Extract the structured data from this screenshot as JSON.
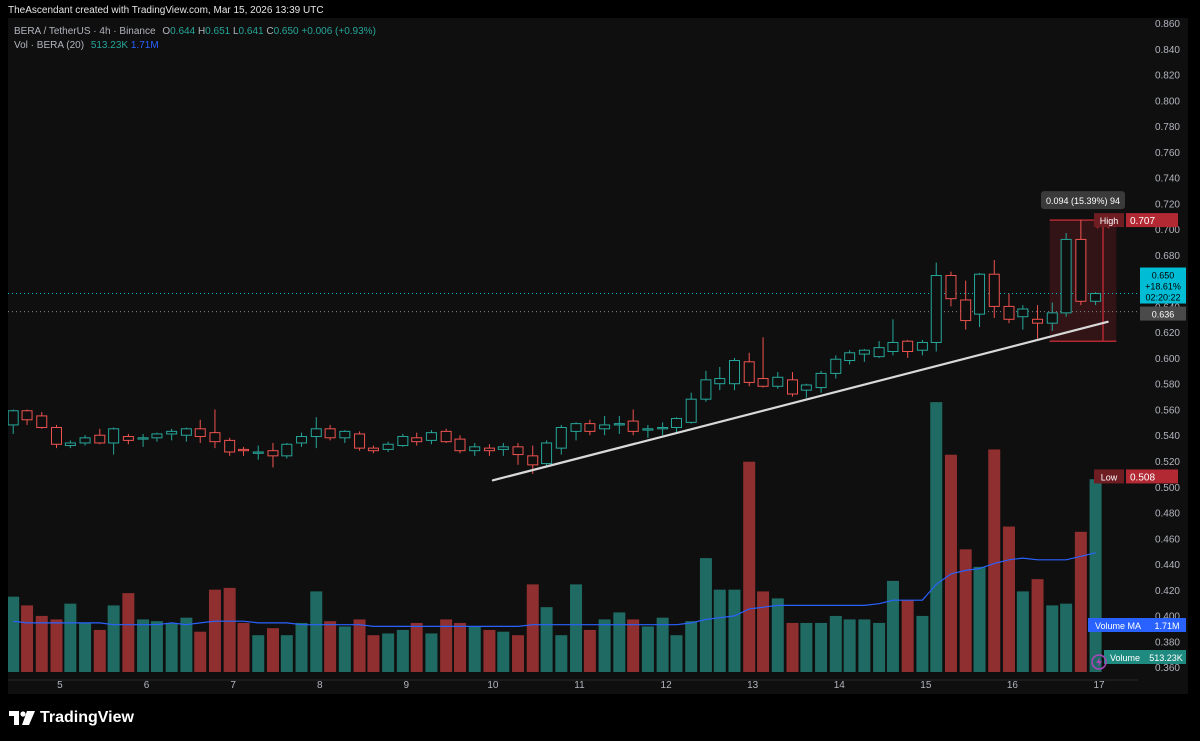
{
  "header": {
    "credit": "TheAscendant created with TradingView.com, Mar 15, 2026 13:39 UTC",
    "symbol": "BERA / TetherUS · 4h · Binance",
    "open_label": "O",
    "open": "0.644",
    "high_label": "H",
    "high": "0.651",
    "low_label": "L",
    "low": "0.641",
    "close_label": "C",
    "close": "0.650",
    "change": "+0.006 (+0.93%)",
    "volume_label": "Vol · BERA (20)",
    "volume_value": "513.23K",
    "volume_ma_value": "1.71M"
  },
  "footer": {
    "brand": "TradingView",
    "logo_icon": "tradingview-logo-icon"
  },
  "colors": {
    "up": "#26a69a",
    "down": "#ef5350",
    "range_red": "#b22833",
    "trendline": "#d9d9d9",
    "ma_line": "#2962ff",
    "price_box": "#00bcd4"
  },
  "chart_data": {
    "type": "candlestick",
    "price_axis": {
      "ylim": [
        0.35,
        0.86
      ],
      "ticks": [
        "0.860",
        "0.840",
        "0.820",
        "0.800",
        "0.780",
        "0.760",
        "0.740",
        "0.720",
        "0.700",
        "0.680",
        "0.660",
        "0.640",
        "0.620",
        "0.600",
        "0.580",
        "0.560",
        "0.540",
        "0.520",
        "0.500",
        "0.480",
        "0.460",
        "0.440",
        "0.420",
        "0.400",
        "0.380",
        "0.360"
      ]
    },
    "time_axis": {
      "labels": [
        "5",
        "6",
        "7",
        "8",
        "9",
        "10",
        "11",
        "12",
        "13",
        "14",
        "15",
        "16",
        "17"
      ],
      "days_range": [
        4.4,
        17.45
      ]
    },
    "candles": [
      {
        "t": 4.46,
        "o": 0.548,
        "h": 0.56,
        "l": 0.541,
        "c": 0.559
      },
      {
        "t": 4.62,
        "o": 0.559,
        "h": 0.56,
        "l": 0.548,
        "c": 0.552
      },
      {
        "t": 4.79,
        "o": 0.555,
        "h": 0.558,
        "l": 0.545,
        "c": 0.546
      },
      {
        "t": 4.96,
        "o": 0.546,
        "h": 0.548,
        "l": 0.53,
        "c": 0.533
      },
      {
        "t": 5.12,
        "o": 0.532,
        "h": 0.536,
        "l": 0.53,
        "c": 0.534
      },
      {
        "t": 5.29,
        "o": 0.534,
        "h": 0.54,
        "l": 0.532,
        "c": 0.538
      },
      {
        "t": 5.46,
        "o": 0.54,
        "h": 0.545,
        "l": 0.533,
        "c": 0.534
      },
      {
        "t": 5.62,
        "o": 0.534,
        "h": 0.546,
        "l": 0.525,
        "c": 0.545
      },
      {
        "t": 5.79,
        "o": 0.539,
        "h": 0.541,
        "l": 0.533,
        "c": 0.536
      },
      {
        "t": 5.96,
        "o": 0.537,
        "h": 0.541,
        "l": 0.531,
        "c": 0.538
      },
      {
        "t": 6.12,
        "o": 0.538,
        "h": 0.542,
        "l": 0.535,
        "c": 0.541
      },
      {
        "t": 6.29,
        "o": 0.541,
        "h": 0.545,
        "l": 0.536,
        "c": 0.543
      },
      {
        "t": 6.46,
        "o": 0.54,
        "h": 0.546,
        "l": 0.535,
        "c": 0.545
      },
      {
        "t": 6.62,
        "o": 0.545,
        "h": 0.552,
        "l": 0.534,
        "c": 0.539
      },
      {
        "t": 6.79,
        "o": 0.542,
        "h": 0.56,
        "l": 0.53,
        "c": 0.535
      },
      {
        "t": 6.96,
        "o": 0.536,
        "h": 0.538,
        "l": 0.524,
        "c": 0.527
      },
      {
        "t": 7.12,
        "o": 0.529,
        "h": 0.531,
        "l": 0.524,
        "c": 0.528
      },
      {
        "t": 7.29,
        "o": 0.526,
        "h": 0.532,
        "l": 0.521,
        "c": 0.527
      },
      {
        "t": 7.46,
        "o": 0.528,
        "h": 0.534,
        "l": 0.515,
        "c": 0.524
      },
      {
        "t": 7.62,
        "o": 0.524,
        "h": 0.534,
        "l": 0.522,
        "c": 0.533
      },
      {
        "t": 7.79,
        "o": 0.534,
        "h": 0.542,
        "l": 0.531,
        "c": 0.539
      },
      {
        "t": 7.96,
        "o": 0.539,
        "h": 0.554,
        "l": 0.53,
        "c": 0.545
      },
      {
        "t": 8.12,
        "o": 0.545,
        "h": 0.548,
        "l": 0.536,
        "c": 0.538
      },
      {
        "t": 8.29,
        "o": 0.538,
        "h": 0.544,
        "l": 0.534,
        "c": 0.543
      },
      {
        "t": 8.46,
        "o": 0.541,
        "h": 0.543,
        "l": 0.528,
        "c": 0.53
      },
      {
        "t": 8.62,
        "o": 0.53,
        "h": 0.532,
        "l": 0.526,
        "c": 0.528
      },
      {
        "t": 8.79,
        "o": 0.529,
        "h": 0.535,
        "l": 0.527,
        "c": 0.533
      },
      {
        "t": 8.96,
        "o": 0.532,
        "h": 0.541,
        "l": 0.531,
        "c": 0.539
      },
      {
        "t": 9.12,
        "o": 0.538,
        "h": 0.542,
        "l": 0.532,
        "c": 0.535
      },
      {
        "t": 9.29,
        "o": 0.536,
        "h": 0.544,
        "l": 0.533,
        "c": 0.542
      },
      {
        "t": 9.46,
        "o": 0.543,
        "h": 0.545,
        "l": 0.534,
        "c": 0.535
      },
      {
        "t": 9.62,
        "o": 0.537,
        "h": 0.54,
        "l": 0.526,
        "c": 0.528
      },
      {
        "t": 9.79,
        "o": 0.528,
        "h": 0.534,
        "l": 0.524,
        "c": 0.531
      },
      {
        "t": 9.96,
        "o": 0.53,
        "h": 0.533,
        "l": 0.524,
        "c": 0.528
      },
      {
        "t": 10.12,
        "o": 0.529,
        "h": 0.534,
        "l": 0.524,
        "c": 0.531
      },
      {
        "t": 10.29,
        "o": 0.531,
        "h": 0.534,
        "l": 0.517,
        "c": 0.525
      },
      {
        "t": 10.46,
        "o": 0.524,
        "h": 0.532,
        "l": 0.51,
        "c": 0.517
      },
      {
        "t": 10.62,
        "o": 0.518,
        "h": 0.536,
        "l": 0.516,
        "c": 0.534
      },
      {
        "t": 10.79,
        "o": 0.53,
        "h": 0.548,
        "l": 0.525,
        "c": 0.546
      },
      {
        "t": 10.96,
        "o": 0.543,
        "h": 0.55,
        "l": 0.536,
        "c": 0.549
      },
      {
        "t": 11.12,
        "o": 0.549,
        "h": 0.552,
        "l": 0.54,
        "c": 0.543
      },
      {
        "t": 11.29,
        "o": 0.545,
        "h": 0.555,
        "l": 0.54,
        "c": 0.548
      },
      {
        "t": 11.46,
        "o": 0.548,
        "h": 0.555,
        "l": 0.541,
        "c": 0.549
      },
      {
        "t": 11.62,
        "o": 0.551,
        "h": 0.56,
        "l": 0.54,
        "c": 0.543
      },
      {
        "t": 11.79,
        "o": 0.544,
        "h": 0.548,
        "l": 0.538,
        "c": 0.545
      },
      {
        "t": 11.96,
        "o": 0.545,
        "h": 0.55,
        "l": 0.54,
        "c": 0.546
      },
      {
        "t": 12.12,
        "o": 0.546,
        "h": 0.554,
        "l": 0.542,
        "c": 0.553
      },
      {
        "t": 12.29,
        "o": 0.55,
        "h": 0.573,
        "l": 0.549,
        "c": 0.568
      },
      {
        "t": 12.46,
        "o": 0.568,
        "h": 0.59,
        "l": 0.566,
        "c": 0.583
      },
      {
        "t": 12.62,
        "o": 0.58,
        "h": 0.593,
        "l": 0.575,
        "c": 0.584
      },
      {
        "t": 12.79,
        "o": 0.58,
        "h": 0.6,
        "l": 0.575,
        "c": 0.598
      },
      {
        "t": 12.96,
        "o": 0.597,
        "h": 0.604,
        "l": 0.578,
        "c": 0.581
      },
      {
        "t": 13.12,
        "o": 0.584,
        "h": 0.616,
        "l": 0.577,
        "c": 0.578
      },
      {
        "t": 13.29,
        "o": 0.578,
        "h": 0.589,
        "l": 0.576,
        "c": 0.585
      },
      {
        "t": 13.46,
        "o": 0.583,
        "h": 0.589,
        "l": 0.57,
        "c": 0.572
      },
      {
        "t": 13.62,
        "o": 0.575,
        "h": 0.58,
        "l": 0.569,
        "c": 0.579
      },
      {
        "t": 13.79,
        "o": 0.577,
        "h": 0.59,
        "l": 0.573,
        "c": 0.588
      },
      {
        "t": 13.96,
        "o": 0.588,
        "h": 0.602,
        "l": 0.584,
        "c": 0.599
      },
      {
        "t": 14.12,
        "o": 0.598,
        "h": 0.606,
        "l": 0.595,
        "c": 0.604
      },
      {
        "t": 14.29,
        "o": 0.603,
        "h": 0.607,
        "l": 0.597,
        "c": 0.606
      },
      {
        "t": 14.46,
        "o": 0.601,
        "h": 0.613,
        "l": 0.6,
        "c": 0.608
      },
      {
        "t": 14.62,
        "o": 0.605,
        "h": 0.63,
        "l": 0.602,
        "c": 0.612
      },
      {
        "t": 14.79,
        "o": 0.613,
        "h": 0.614,
        "l": 0.6,
        "c": 0.605
      },
      {
        "t": 14.96,
        "o": 0.606,
        "h": 0.614,
        "l": 0.602,
        "c": 0.612
      },
      {
        "t": 15.12,
        "o": 0.612,
        "h": 0.674,
        "l": 0.605,
        "c": 0.664
      },
      {
        "t": 15.29,
        "o": 0.664,
        "h": 0.667,
        "l": 0.64,
        "c": 0.646
      },
      {
        "t": 15.46,
        "o": 0.645,
        "h": 0.66,
        "l": 0.622,
        "c": 0.629
      },
      {
        "t": 15.62,
        "o": 0.634,
        "h": 0.666,
        "l": 0.624,
        "c": 0.665
      },
      {
        "t": 15.79,
        "o": 0.665,
        "h": 0.676,
        "l": 0.631,
        "c": 0.64
      },
      {
        "t": 15.96,
        "o": 0.64,
        "h": 0.65,
        "l": 0.627,
        "c": 0.63
      },
      {
        "t": 16.12,
        "o": 0.632,
        "h": 0.641,
        "l": 0.622,
        "c": 0.638
      },
      {
        "t": 16.29,
        "o": 0.63,
        "h": 0.641,
        "l": 0.615,
        "c": 0.627
      },
      {
        "t": 16.46,
        "o": 0.627,
        "h": 0.643,
        "l": 0.621,
        "c": 0.635
      },
      {
        "t": 16.62,
        "o": 0.635,
        "h": 0.697,
        "l": 0.632,
        "c": 0.692
      },
      {
        "t": 16.79,
        "o": 0.692,
        "h": 0.707,
        "l": 0.641,
        "c": 0.644
      },
      {
        "t": 16.96,
        "o": 0.644,
        "h": 0.651,
        "l": 0.641,
        "c": 0.65
      }
    ],
    "volume_axis": {
      "ylim": [
        0,
        10.5
      ]
    },
    "volumes": [
      4.3,
      3.8,
      3.2,
      3.0,
      3.9,
      2.8,
      2.4,
      3.8,
      4.5,
      3.0,
      2.9,
      2.8,
      3.1,
      2.3,
      4.7,
      4.8,
      2.8,
      2.1,
      2.5,
      2.1,
      2.8,
      4.6,
      2.9,
      2.6,
      3.0,
      2.1,
      2.2,
      2.4,
      2.8,
      2.2,
      3.0,
      2.8,
      2.6,
      2.4,
      2.3,
      2.1,
      5.0,
      3.7,
      2.1,
      5.0,
      2.4,
      3.0,
      3.4,
      3.0,
      2.6,
      3.1,
      2.1,
      2.9,
      6.5,
      4.7,
      4.7,
      12.0,
      4.6,
      4.2,
      2.8,
      2.8,
      2.8,
      3.2,
      3.0,
      3.0,
      2.8,
      5.2,
      4.1,
      3.2,
      15.4,
      12.4,
      7.0,
      6.0,
      12.7,
      8.3,
      4.6,
      5.3,
      3.8,
      3.9,
      8.0,
      11.0,
      2.3
    ],
    "volume_ma": [
      2.9,
      2.8,
      2.8,
      2.8,
      2.8,
      2.8,
      2.8,
      2.7,
      2.7,
      2.7,
      2.7,
      2.8,
      2.7,
      2.8,
      2.9,
      2.9,
      2.9,
      2.8,
      2.8,
      2.8,
      2.7,
      2.7,
      2.7,
      2.7,
      2.7,
      2.6,
      2.6,
      2.6,
      2.6,
      2.6,
      2.6,
      2.6,
      2.6,
      2.6,
      2.6,
      2.6,
      2.7,
      2.7,
      2.7,
      2.7,
      2.7,
      2.7,
      2.7,
      2.7,
      2.7,
      2.7,
      2.7,
      2.8,
      3.0,
      3.1,
      3.2,
      3.6,
      3.7,
      3.8,
      3.8,
      3.8,
      3.8,
      3.8,
      3.8,
      3.8,
      3.9,
      4.1,
      4.1,
      4.1,
      5.0,
      5.6,
      5.8,
      5.9,
      6.2,
      6.4,
      6.5,
      6.4,
      6.4,
      6.4,
      6.6,
      6.8,
      6.8
    ],
    "trendline": {
      "points": [
        [
          10.0,
          0.505
        ],
        [
          11.0,
          0.52
        ],
        [
          16.32,
          0.614
        ],
        [
          17.1,
          0.628
        ]
      ]
    },
    "range_measure": {
      "label": "0.094 (15.39%) 94",
      "top": 0.707,
      "bottom": 0.613,
      "t_start": 16.43,
      "t_end": 17.2
    },
    "markers": {
      "high": {
        "label": "High",
        "value": "0.707",
        "price": 0.707
      },
      "low": {
        "label": "Low",
        "value": "0.508",
        "price": 0.508
      },
      "current": {
        "value": "0.650",
        "change": "+18.61%",
        "countdown": "02:20:22",
        "price": 0.65
      },
      "other": {
        "value": "0.636",
        "price": 0.636
      }
    },
    "volume_ma_label": {
      "label": "Volume MA",
      "value": "1.71M"
    },
    "volume_label": {
      "label": "Volume",
      "value": "513.23K"
    },
    "grid": false
  }
}
